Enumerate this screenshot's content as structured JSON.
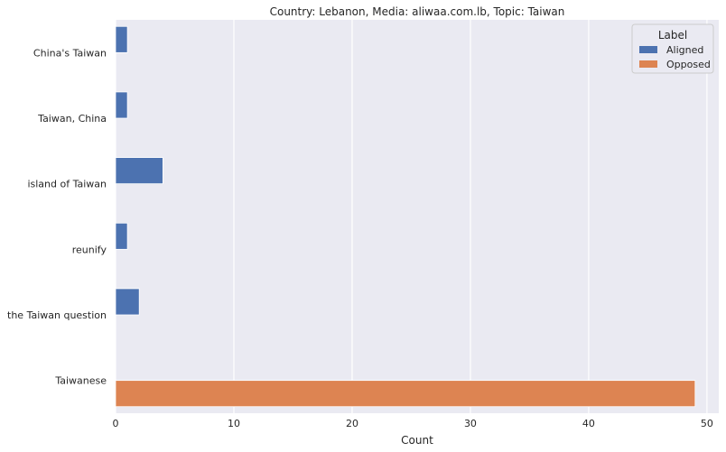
{
  "chart_data": {
    "type": "bar",
    "orientation": "horizontal",
    "title": "Country: Lebanon, Media: aliwaa.com.lb, Topic: Taiwan",
    "xlabel": "Count",
    "ylabel": "",
    "xlim": [
      0,
      51
    ],
    "xticks": [
      0,
      10,
      20,
      30,
      40,
      50
    ],
    "grid": true,
    "background": "#EAEAF2",
    "legend": {
      "title": "Label",
      "position": "top-right"
    },
    "categories": [
      "China's Taiwan",
      "Taiwan, China",
      "island of Taiwan",
      "reunify",
      "the Taiwan question",
      "Taiwanese"
    ],
    "series": [
      {
        "name": "Aligned",
        "color": "#4C72B0",
        "values": [
          1,
          1,
          4,
          1,
          2,
          0
        ]
      },
      {
        "name": "Opposed",
        "color": "#DD8452",
        "values": [
          0,
          0,
          0,
          0,
          0,
          49
        ]
      }
    ]
  }
}
